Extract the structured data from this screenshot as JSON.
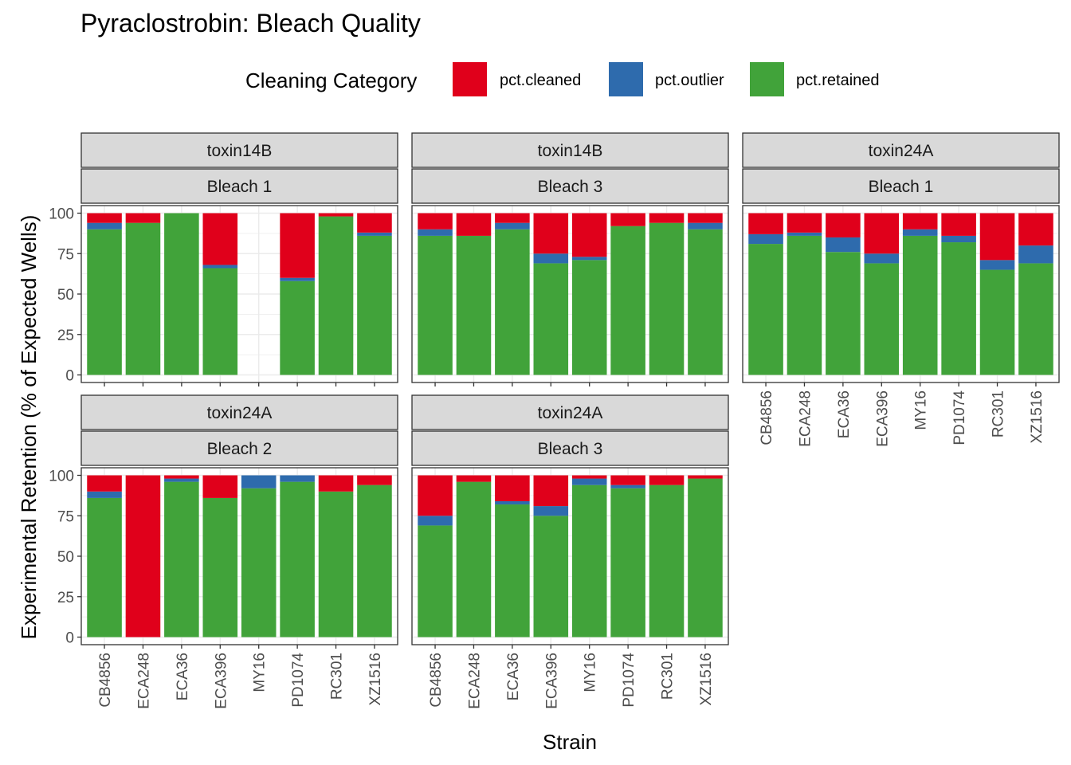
{
  "chart_data": {
    "type": "bar",
    "stacked": true,
    "title": "Pyraclostrobin: Bleach Quality",
    "xlabel": "Strain",
    "ylabel": "Experimental Retention (% of Expected Wells)",
    "ylim": [
      0,
      100
    ],
    "yticks": [
      0,
      25,
      50,
      75,
      100
    ],
    "legend": {
      "title": "Cleaning Category",
      "position": "top",
      "entries": [
        {
          "key": "pct.cleaned",
          "label": "pct.cleaned",
          "color": "#E0001B"
        },
        {
          "key": "pct.outlier",
          "label": "pct.outlier",
          "color": "#2E6BAD"
        },
        {
          "key": "pct.retained",
          "label": "pct.retained",
          "color": "#41A33A"
        }
      ]
    },
    "categories": [
      "CB4856",
      "ECA248",
      "ECA36",
      "ECA396",
      "MY16",
      "PD1074",
      "RC301",
      "XZ1516"
    ],
    "panels": [
      {
        "strip_top": "toxin14B",
        "strip_bottom": "Bleach 1",
        "bars": [
          {
            "retained": 90,
            "outlier": 4,
            "cleaned": 6
          },
          {
            "retained": 94,
            "outlier": 0,
            "cleaned": 6
          },
          {
            "retained": 100,
            "outlier": 0,
            "cleaned": 0
          },
          {
            "retained": 66,
            "outlier": 2,
            "cleaned": 32
          },
          null,
          {
            "retained": 58,
            "outlier": 2,
            "cleaned": 40
          },
          {
            "retained": 98,
            "outlier": 0,
            "cleaned": 2
          },
          {
            "retained": 86,
            "outlier": 2,
            "cleaned": 12
          }
        ]
      },
      {
        "strip_top": "toxin14B",
        "strip_bottom": "Bleach 3",
        "bars": [
          {
            "retained": 86,
            "outlier": 4,
            "cleaned": 10
          },
          {
            "retained": 86,
            "outlier": 0,
            "cleaned": 14
          },
          {
            "retained": 90,
            "outlier": 4,
            "cleaned": 6
          },
          {
            "retained": 69,
            "outlier": 6,
            "cleaned": 25
          },
          {
            "retained": 71,
            "outlier": 2,
            "cleaned": 27
          },
          {
            "retained": 92,
            "outlier": 0,
            "cleaned": 8
          },
          {
            "retained": 94,
            "outlier": 0,
            "cleaned": 6
          },
          {
            "retained": 90,
            "outlier": 4,
            "cleaned": 6
          }
        ]
      },
      {
        "strip_top": "toxin24A",
        "strip_bottom": "Bleach 1",
        "bars": [
          {
            "retained": 81,
            "outlier": 6,
            "cleaned": 13
          },
          {
            "retained": 86,
            "outlier": 2,
            "cleaned": 12
          },
          {
            "retained": 76,
            "outlier": 9,
            "cleaned": 15
          },
          {
            "retained": 69,
            "outlier": 6,
            "cleaned": 25
          },
          {
            "retained": 86,
            "outlier": 4,
            "cleaned": 10
          },
          {
            "retained": 82,
            "outlier": 4,
            "cleaned": 14
          },
          {
            "retained": 65,
            "outlier": 6,
            "cleaned": 29
          },
          {
            "retained": 69,
            "outlier": 11,
            "cleaned": 20
          }
        ]
      },
      {
        "strip_top": "toxin24A",
        "strip_bottom": "Bleach 2",
        "bars": [
          {
            "retained": 86,
            "outlier": 4,
            "cleaned": 10
          },
          {
            "retained": 0,
            "outlier": 0,
            "cleaned": 100
          },
          {
            "retained": 96,
            "outlier": 2,
            "cleaned": 2
          },
          {
            "retained": 86,
            "outlier": 0,
            "cleaned": 14
          },
          {
            "retained": 92,
            "outlier": 8,
            "cleaned": 0
          },
          {
            "retained": 96,
            "outlier": 4,
            "cleaned": 0
          },
          {
            "retained": 90,
            "outlier": 0,
            "cleaned": 10
          },
          {
            "retained": 94,
            "outlier": 0,
            "cleaned": 6
          }
        ]
      },
      {
        "strip_top": "toxin24A",
        "strip_bottom": "Bleach 3",
        "bars": [
          {
            "retained": 69,
            "outlier": 6,
            "cleaned": 25
          },
          {
            "retained": 96,
            "outlier": 0,
            "cleaned": 4
          },
          {
            "retained": 82,
            "outlier": 2,
            "cleaned": 16
          },
          {
            "retained": 75,
            "outlier": 6,
            "cleaned": 19
          },
          {
            "retained": 94,
            "outlier": 4,
            "cleaned": 2
          },
          {
            "retained": 92,
            "outlier": 2,
            "cleaned": 6
          },
          {
            "retained": 94,
            "outlier": 0,
            "cleaned": 6
          },
          {
            "retained": 98,
            "outlier": 0,
            "cleaned": 2
          }
        ]
      }
    ]
  }
}
